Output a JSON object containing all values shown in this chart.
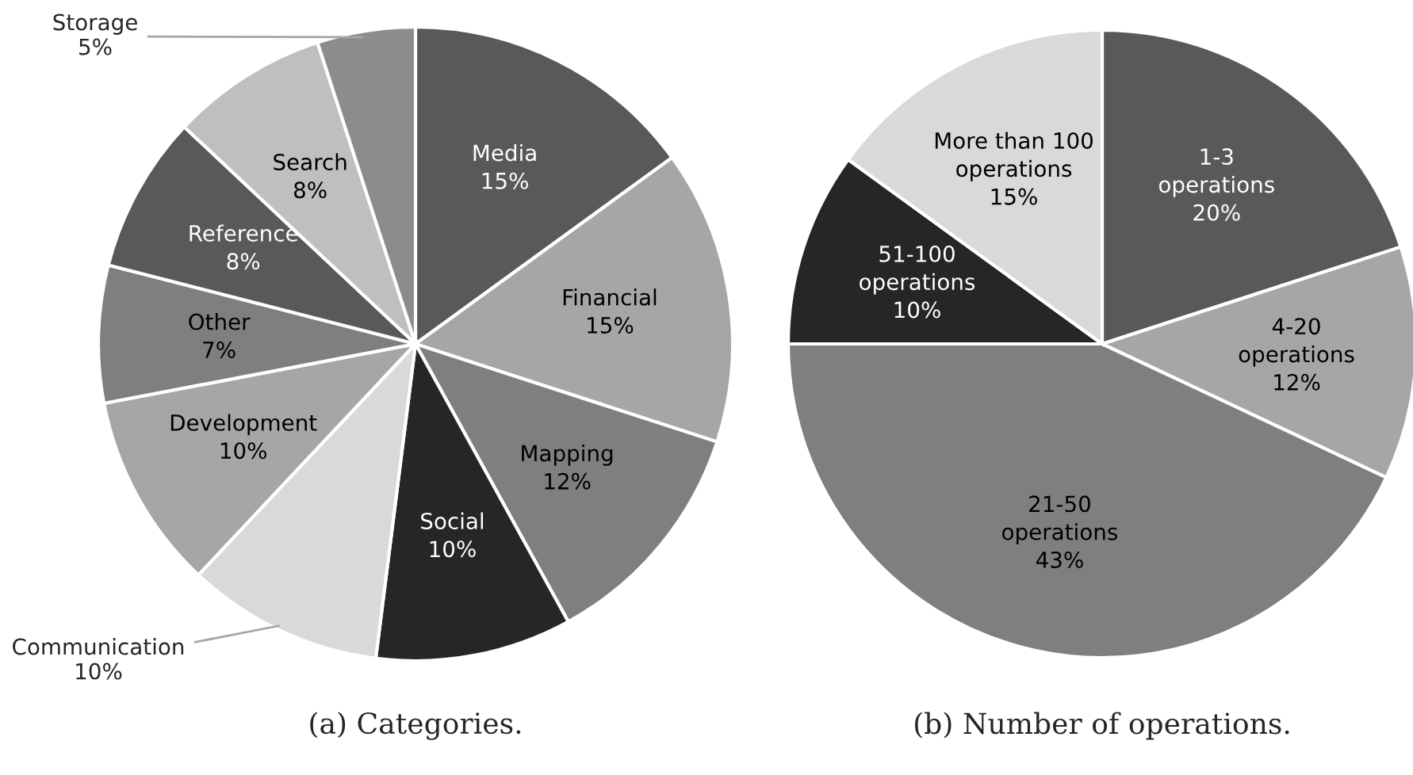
{
  "chart_data": [
    {
      "type": "pie",
      "title": "(a) Categories.",
      "categories": [
        "Media",
        "Financial",
        "Mapping",
        "Social",
        "Communication",
        "Development",
        "Other",
        "Reference",
        "Search",
        "Storage"
      ],
      "values": [
        15,
        15,
        12,
        10,
        10,
        10,
        7,
        8,
        8,
        5
      ],
      "colors": [
        "#595959",
        "#a6a6a6",
        "#7f7f7f",
        "#262626",
        "#d9d9d9",
        "#a6a6a6",
        "#7f7f7f",
        "#595959",
        "#bfbfbf",
        "#8c8c8c"
      ],
      "value_labels": [
        "15%",
        "15%",
        "12%",
        "10%",
        "10%",
        "10%",
        "7%",
        "8%",
        "8%",
        "5%"
      ]
    },
    {
      "type": "pie",
      "title": "(b) Number of operations.",
      "categories": [
        "1-3 operations",
        "4-20 operations",
        "21-50 operations",
        "51-100 operations",
        "More than 100 operations"
      ],
      "values": [
        20,
        12,
        43,
        10,
        15
      ],
      "colors": [
        "#595959",
        "#a6a6a6",
        "#7f7f7f",
        "#262626",
        "#d9d9d9"
      ],
      "value_labels": [
        "20%",
        "12%",
        "43%",
        "10%",
        "15%"
      ]
    }
  ]
}
